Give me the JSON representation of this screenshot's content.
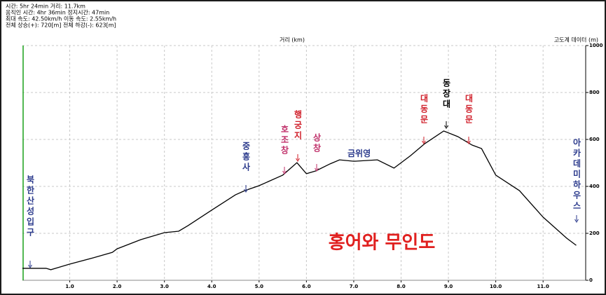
{
  "chart_data": {
    "type": "line",
    "stats": [
      "시간: 5hr 24min   거리: 11.7km",
      "움직인 시간: 4hr 36min   정지시간: 47min",
      "최대 속도: 42.50km/h   이동 속도: 2.55km/h",
      "전체 상승(+): 720[m]   전체 하강(-): 623[m]"
    ],
    "x_label": "거리 (km)",
    "y_label": "고도계 데이터 (m)",
    "title": "홍어와 무인도",
    "x": [
      0,
      0.5,
      0.6,
      1.0,
      1.5,
      1.9,
      2.0,
      2.5,
      3.0,
      3.3,
      3.5,
      4.0,
      4.5,
      4.7,
      5.0,
      5.5,
      5.8,
      6.0,
      6.2,
      6.5,
      6.7,
      7.0,
      7.5,
      7.85,
      8.2,
      8.5,
      8.9,
      9.2,
      9.5,
      9.7,
      10.0,
      10.5,
      11.0,
      11.5,
      11.7
    ],
    "series": [
      {
        "color": "#000000",
        "values": [
          51,
          51,
          45,
          69,
          96,
          119,
          134,
          173,
          203,
          209,
          233,
          299,
          364,
          382,
          403,
          448,
          501,
          454,
          466,
          496,
          513,
          507,
          513,
          478,
          531,
          582,
          636,
          612,
          576,
          561,
          448,
          382,
          269,
          179,
          149
        ]
      }
    ],
    "xlim": [
      0,
      11.9
    ],
    "ylim": [
      0,
      1000
    ],
    "xticks": [
      {
        "value": 1,
        "label": "1.0"
      },
      {
        "value": 2,
        "label": "2.0"
      },
      {
        "value": 3,
        "label": "3.0"
      },
      {
        "value": 4,
        "label": "4.0"
      },
      {
        "value": 5,
        "label": "5.0"
      },
      {
        "value": 6,
        "label": "6.0"
      },
      {
        "value": 7,
        "label": "7.0"
      },
      {
        "value": 8,
        "label": "8.0"
      },
      {
        "value": 9,
        "label": "9.0"
      },
      {
        "value": 10,
        "label": "10.0"
      },
      {
        "value": 11,
        "label": "11.0"
      }
    ],
    "yticks": [
      0,
      200,
      400,
      600,
      800,
      1000
    ],
    "grid": true,
    "annotations": [
      {
        "text": "북한산성입구",
        "color": "#2b3a8c"
      },
      {
        "text": "중흥사",
        "color": "#2b3a8c"
      },
      {
        "text": "호조창",
        "color": "#c0306a"
      },
      {
        "text": "행궁지",
        "color": "#d01f2a"
      },
      {
        "text": "상창",
        "color": "#c0306a"
      },
      {
        "text": "금위영",
        "color": "#2b3a8c"
      },
      {
        "text": "대동문",
        "color": "#d01f2a"
      },
      {
        "text": "동장대",
        "color": "#000000"
      },
      {
        "text": "대동문",
        "color": "#d01f2a"
      },
      {
        "text": "아카데미하우스",
        "color": "#2b3a8c"
      }
    ],
    "title_color": "#e0201f"
  }
}
